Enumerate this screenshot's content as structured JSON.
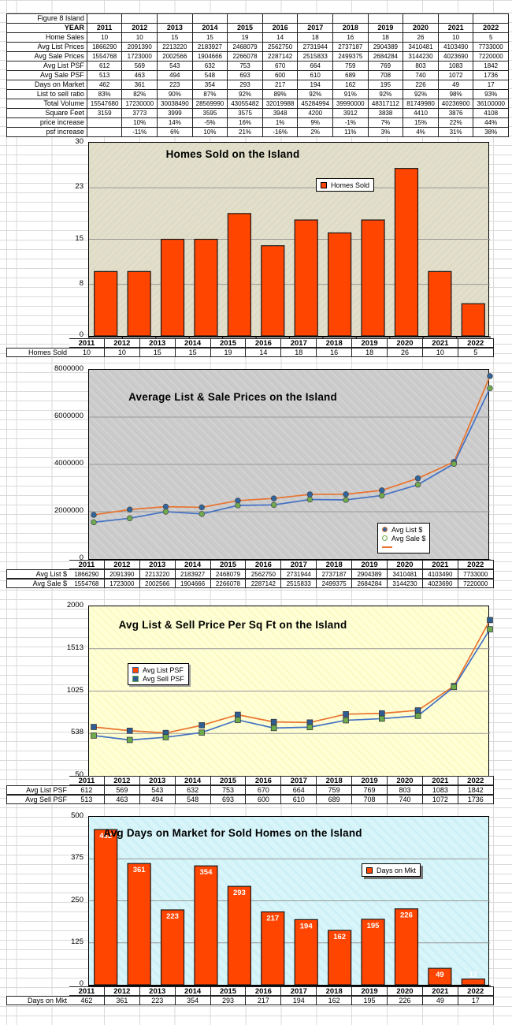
{
  "sheet": {
    "corner_label": "Figure 8 Island",
    "year_header": "YEAR",
    "years": [
      "2011",
      "2012",
      "2013",
      "2014",
      "2015",
      "2016",
      "2017",
      "2018",
      "2019",
      "2020",
      "2021",
      "2022"
    ]
  },
  "table": {
    "rows": [
      {
        "label": "Home Sales",
        "values": [
          "10",
          "10",
          "15",
          "15",
          "19",
          "14",
          "18",
          "16",
          "18",
          "26",
          "10",
          "5"
        ]
      },
      {
        "label": "Avg List Prices",
        "values": [
          "1866290",
          "2091390",
          "2213220",
          "2183927",
          "2468079",
          "2562750",
          "2731944",
          "2737187",
          "2904389",
          "3410481",
          "4103490",
          "7733000"
        ]
      },
      {
        "label": "Avg Sale Prices",
        "values": [
          "1554768",
          "1723000",
          "2002566",
          "1904666",
          "2266078",
          "2287142",
          "2515833",
          "2499375",
          "2684284",
          "3144230",
          "4023690",
          "7220000"
        ]
      },
      {
        "label": "Avg List PSF",
        "values": [
          "612",
          "569",
          "543",
          "632",
          "753",
          "670",
          "664",
          "759",
          "769",
          "803",
          "1083",
          "1842"
        ]
      },
      {
        "label": "Avg Sale PSF",
        "values": [
          "513",
          "463",
          "494",
          "548",
          "693",
          "600",
          "610",
          "689",
          "708",
          "740",
          "1072",
          "1736"
        ]
      },
      {
        "label": "Days on Market",
        "values": [
          "462",
          "361",
          "223",
          "354",
          "293",
          "217",
          "194",
          "162",
          "195",
          "226",
          "49",
          "17"
        ]
      },
      {
        "label": "List to sell ratio",
        "values": [
          "83%",
          "82%",
          "90%",
          "87%",
          "92%",
          "89%",
          "92%",
          "91%",
          "92%",
          "92%",
          "98%",
          "93%"
        ]
      },
      {
        "label": "Total Volume",
        "values": [
          "15547680",
          "17230000",
          "30038490",
          "28569990",
          "43055482",
          "32019988",
          "45284994",
          "39990000",
          "48317112",
          "81749980",
          "40236900",
          "36100000"
        ]
      },
      {
        "label": "Square Feet",
        "values": [
          "3159",
          "3773",
          "3999",
          "3595",
          "3575",
          "3948",
          "4200",
          "3912",
          "3838",
          "4410",
          "3876",
          "4108"
        ]
      },
      {
        "label": "price increase",
        "values": [
          "",
          "10%",
          "14%",
          "-5%",
          "16%",
          "1%",
          "9%",
          "-1%",
          "7%",
          "15%",
          "22%",
          "44%"
        ]
      },
      {
        "label": "psf increase",
        "values": [
          "",
          "-11%",
          "6%",
          "10%",
          "21%",
          "-16%",
          "2%",
          "11%",
          "3%",
          "4%",
          "31%",
          "38%"
        ]
      }
    ]
  },
  "chart_data": [
    {
      "type": "bar",
      "title": "Homes Sold on the Island",
      "categories": [
        "2011",
        "2012",
        "2013",
        "2014",
        "2015",
        "2016",
        "2017",
        "2018",
        "2019",
        "2020",
        "2021",
        "2022"
      ],
      "series": [
        {
          "name": "Homes Sold",
          "values": [
            10,
            10,
            15,
            15,
            19,
            14,
            18,
            16,
            18,
            26,
            10,
            5
          ]
        }
      ],
      "ylim": [
        0,
        30
      ],
      "yticks": [
        0,
        8,
        15,
        23,
        30
      ],
      "legend": [
        "Homes Sold"
      ],
      "legend_position": "top-right",
      "grid": "horizontal",
      "plot_bg": "#e0ddc8",
      "bar_color": "#FF4500"
    },
    {
      "type": "line",
      "title": "Average List & Sale Prices on the Island",
      "categories": [
        "2011",
        "2012",
        "2013",
        "2014",
        "2015",
        "2016",
        "2017",
        "2018",
        "2019",
        "2020",
        "2021",
        "2022"
      ],
      "series": [
        {
          "name": "Avg List $",
          "values": [
            1866290,
            2091390,
            2213220,
            2183927,
            2468079,
            2562750,
            2731944,
            2737187,
            2904389,
            3410481,
            4103490,
            7733000
          ],
          "line_color": "#E87430",
          "marker": "circle",
          "marker_color": "#31659C"
        },
        {
          "name": "Avg Sale $",
          "values": [
            1554768,
            1723000,
            2002566,
            1904666,
            2266078,
            2287142,
            2515833,
            2499375,
            2684284,
            3144230,
            4023690,
            7220000
          ],
          "line_color": "#4472C4",
          "marker": "circle",
          "marker_color": "#71A94E"
        }
      ],
      "ylim": [
        0,
        8000000
      ],
      "yticks": [
        0,
        2000000,
        4000000,
        6000000,
        8000000
      ],
      "legend": [
        "Avg List $",
        "Avg Sale $"
      ],
      "legend_position": "bottom-right",
      "grid": "horizontal",
      "plot_bg": "#cbcbcb"
    },
    {
      "type": "line",
      "title": "Avg List & Sell Price Per Sq Ft on the Island",
      "categories": [
        "2011",
        "2012",
        "2013",
        "2014",
        "2015",
        "2016",
        "2017",
        "2018",
        "2019",
        "2020",
        "2021",
        "2022"
      ],
      "series": [
        {
          "name": "Avg List PSF",
          "values": [
            612,
            569,
            543,
            632,
            753,
            670,
            664,
            759,
            769,
            803,
            1083,
            1842
          ],
          "line_color": "#E87430",
          "marker": "square",
          "marker_color": "#2F5E94"
        },
        {
          "name": "Avg Sell PSF",
          "values": [
            513,
            463,
            494,
            548,
            693,
            600,
            610,
            689,
            708,
            740,
            1072,
            1736
          ],
          "line_color": "#4472C4",
          "marker": "square",
          "marker_color": "#6DAC4B"
        }
      ],
      "ylim": [
        50,
        2000
      ],
      "yticks": [
        50,
        538,
        1025,
        1513,
        2000
      ],
      "legend": [
        "Avg List PSF",
        "Avg Sell PSF"
      ],
      "legend_position": "middle-left",
      "grid": "horizontal",
      "plot_bg": "#ffffd2"
    },
    {
      "type": "bar",
      "title": "Avg Days on Market for Sold Homes on the Island",
      "categories": [
        "2011",
        "2012",
        "2013",
        "2014",
        "2015",
        "2016",
        "2017",
        "2018",
        "2019",
        "2020",
        "2021",
        "2022"
      ],
      "series": [
        {
          "name": "Days on Mkt",
          "values": [
            462,
            361,
            223,
            354,
            293,
            217,
            194,
            162,
            195,
            226,
            49,
            17
          ]
        }
      ],
      "ylim": [
        0,
        500
      ],
      "yticks": [
        0,
        125,
        250,
        375,
        500
      ],
      "legend": [
        "Days on Mkt"
      ],
      "legend_position": "middle-right",
      "grid": "horizontal",
      "plot_bg": "#d4f3f8",
      "bar_color": "#FF4500",
      "bar_labels": true,
      "bar_label_color": "#ffffff"
    }
  ]
}
